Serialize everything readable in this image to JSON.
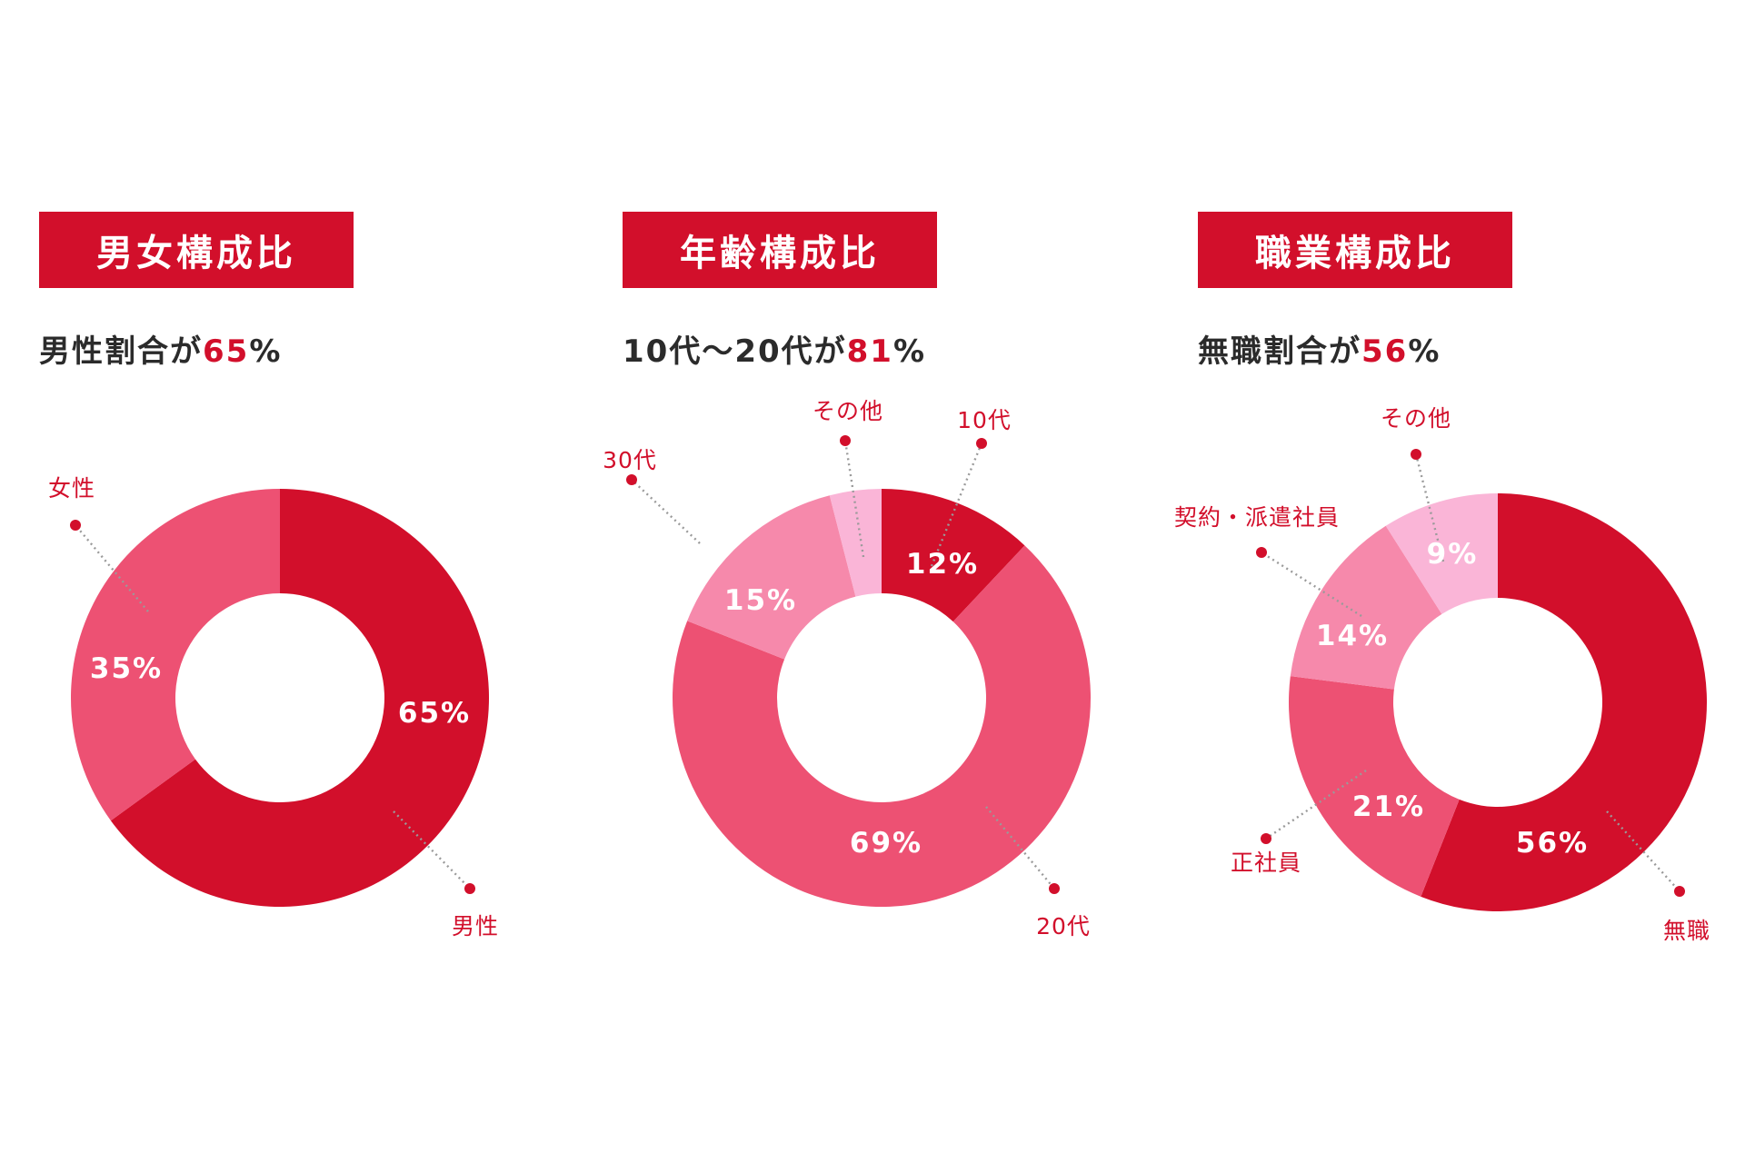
{
  "colors": {
    "accent": "#d20f2b",
    "text": "#2b2b2b"
  },
  "panels": [
    {
      "header": "男女構成比",
      "subtitle": {
        "prefix": "男性割合が",
        "value": "65",
        "suffix": "%"
      }
    },
    {
      "header": "年齢構成比",
      "subtitle": {
        "prefix": "10代〜20代が",
        "value": "81",
        "suffix": "%"
      }
    },
    {
      "header": "職業構成比",
      "subtitle": {
        "prefix": "無職割合が",
        "value": "56",
        "suffix": "%"
      }
    }
  ],
  "chart_data": [
    {
      "type": "pie",
      "title": "男女構成比",
      "slices": [
        {
          "name": "男性",
          "value": 65,
          "label": "65%",
          "color": "#d20f2b"
        },
        {
          "name": "女性",
          "value": 35,
          "label": "35%",
          "color": "#ed5173"
        }
      ]
    },
    {
      "type": "pie",
      "title": "年齢構成比",
      "slices": [
        {
          "name": "10代",
          "value": 12,
          "label": "12%",
          "color": "#d20f2b"
        },
        {
          "name": "20代",
          "value": 69,
          "label": "69%",
          "color": "#ed5173"
        },
        {
          "name": "30代",
          "value": 15,
          "label": "15%",
          "color": "#f689ab"
        },
        {
          "name": "その他",
          "value": 4,
          "label": "",
          "color": "#fab5d7"
        }
      ]
    },
    {
      "type": "pie",
      "title": "職業構成比",
      "slices": [
        {
          "name": "無職",
          "value": 56,
          "label": "56%",
          "color": "#d20f2b"
        },
        {
          "name": "正社員",
          "value": 21,
          "label": "21%",
          "color": "#ed5173"
        },
        {
          "name": "契約・派遣社員",
          "value": 14,
          "label": "14%",
          "color": "#f689ab"
        },
        {
          "name": "その他",
          "value": 9,
          "label": "9%",
          "color": "#fab5d7"
        }
      ]
    }
  ]
}
